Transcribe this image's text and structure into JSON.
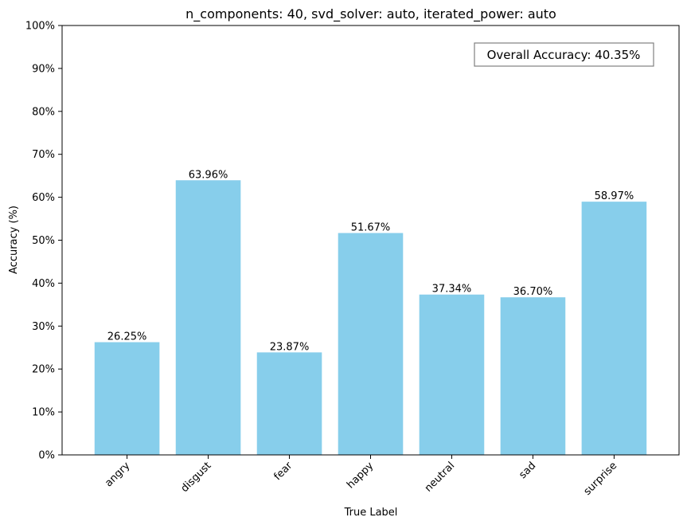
{
  "chart_data": {
    "type": "bar",
    "title": "n_components: 40, svd_solver: auto, iterated_power: auto",
    "xlabel": "True Label",
    "ylabel": "Accuracy (%)",
    "categories": [
      "angry",
      "disgust",
      "fear",
      "happy",
      "neutral",
      "sad",
      "surprise"
    ],
    "values": [
      26.25,
      63.96,
      23.87,
      51.67,
      37.34,
      36.7,
      58.97
    ],
    "value_labels": [
      "26.25%",
      "63.96%",
      "23.87%",
      "51.67%",
      "37.34%",
      "36.70%",
      "58.97%"
    ],
    "ylim": [
      0,
      100
    ],
    "yticks": [
      0,
      10,
      20,
      30,
      40,
      50,
      60,
      70,
      80,
      90,
      100
    ],
    "ytick_labels": [
      "0%",
      "10%",
      "20%",
      "30%",
      "40%",
      "50%",
      "60%",
      "70%",
      "80%",
      "90%",
      "100%"
    ],
    "bar_color": "#87ceeb",
    "grid": false,
    "annotation": "Overall Accuracy: 40.35%"
  }
}
